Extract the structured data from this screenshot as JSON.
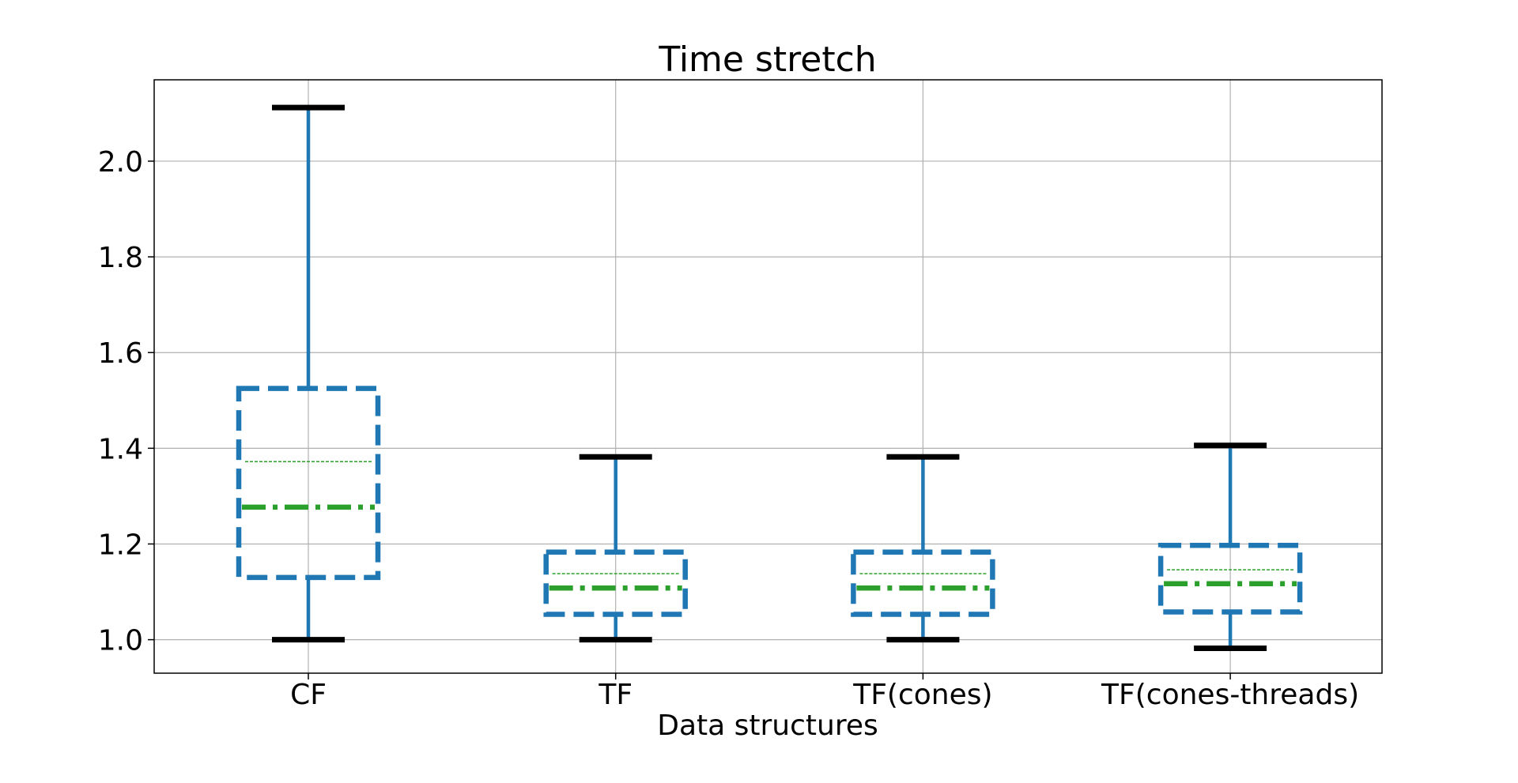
{
  "chart_data": {
    "type": "box",
    "title": "Time stretch",
    "xlabel": "Data structures",
    "ylabel": "",
    "categories": [
      "CF",
      "TF",
      "TF(cones)",
      "TF(cones-threads)"
    ],
    "ylim": [
      0.93,
      2.17
    ],
    "yticks": [
      "1.0",
      "1.2",
      "1.4",
      "1.6",
      "1.8",
      "2.0"
    ],
    "grid": true,
    "boxes": [
      {
        "category": "CF",
        "whisker_low": 1.0,
        "q1": 1.13,
        "median": 1.277,
        "mean": 1.372,
        "q3": 1.525,
        "whisker_high": 2.112
      },
      {
        "category": "TF",
        "whisker_low": 1.0,
        "q1": 1.053,
        "median": 1.108,
        "mean": 1.138,
        "q3": 1.183,
        "whisker_high": 1.382
      },
      {
        "category": "TF(cones)",
        "whisker_low": 1.0,
        "q1": 1.053,
        "median": 1.108,
        "mean": 1.138,
        "q3": 1.183,
        "whisker_high": 1.382
      },
      {
        "category": "TF(cones-threads)",
        "whisker_low": 0.982,
        "q1": 1.058,
        "median": 1.117,
        "mean": 1.146,
        "q3": 1.197,
        "whisker_high": 1.406
      }
    ],
    "colors": {
      "box": "#1f77b4",
      "whisker": "#1f77b4",
      "cap": "#000000",
      "median": "#2ca02c",
      "mean": "#2ca02c"
    }
  }
}
